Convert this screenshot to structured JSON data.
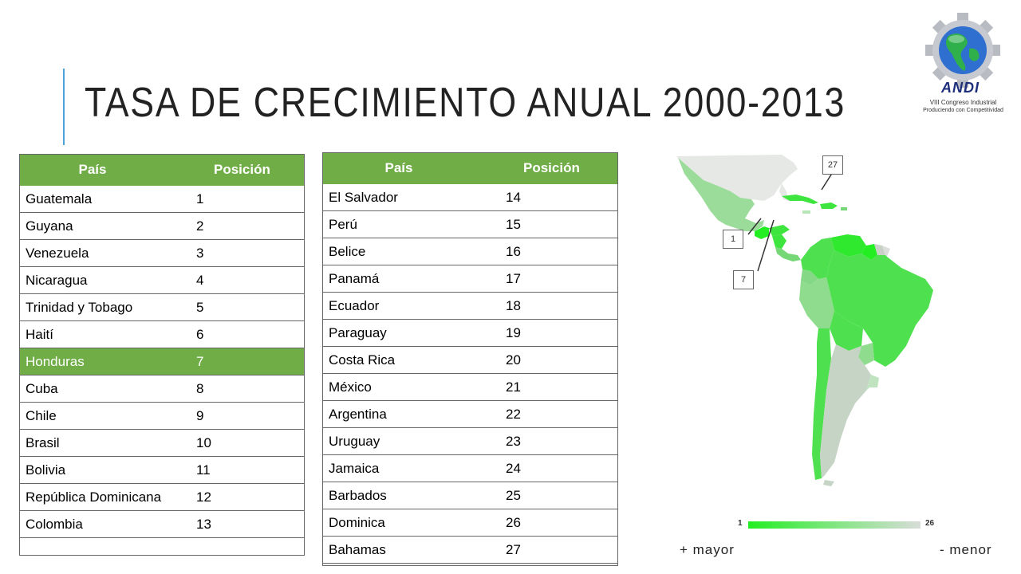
{
  "slide": {
    "title": "TASA DE CRECIMIENTO ANUAL 2000-2013"
  },
  "logo": {
    "name": "ANDI",
    "line1": "VIII Congreso Industrial",
    "line2": "Produciendo con Competitividad"
  },
  "table_left": {
    "headers": [
      "País",
      "Posición"
    ],
    "rows": [
      [
        "Guatemala",
        "1"
      ],
      [
        "Guyana",
        "2"
      ],
      [
        "Venezuela",
        "3"
      ],
      [
        "Nicaragua",
        "4"
      ],
      [
        "Trinidad y Tobago",
        "5"
      ],
      [
        "Haití",
        "6"
      ],
      [
        "Honduras",
        "7"
      ],
      [
        "Cuba",
        "8"
      ],
      [
        "Chile",
        "9"
      ],
      [
        "Brasil",
        "10"
      ],
      [
        "Bolivia",
        "11"
      ],
      [
        "República Dominicana",
        "12"
      ],
      [
        "Colombia",
        "13"
      ]
    ],
    "highlighted_row": 6
  },
  "table_right": {
    "headers": [
      "País",
      "Posición"
    ],
    "rows": [
      [
        "El Salvador",
        "14"
      ],
      [
        "Perú",
        "15"
      ],
      [
        "Belice",
        "16"
      ],
      [
        "Panamá",
        "17"
      ],
      [
        "Ecuador",
        "18"
      ],
      [
        "Paraguay",
        "19"
      ],
      [
        "Costa Rica",
        "20"
      ],
      [
        "México",
        "21"
      ],
      [
        "Argentina",
        "22"
      ],
      [
        "Uruguay",
        "23"
      ],
      [
        "Jamaica",
        "24"
      ],
      [
        "Barbados",
        "25"
      ],
      [
        "Dominica",
        "26"
      ],
      [
        "Bahamas",
        "27"
      ]
    ]
  },
  "map": {
    "callouts": [
      "27",
      "1",
      "7"
    ],
    "scale_min": "1",
    "scale_max": "26",
    "legend_more": "+ mayor",
    "legend_less": "- menor",
    "colors": {
      "high": "#22ee22",
      "mid": "#6fd86f",
      "low": "#d0d4d0",
      "table_header": "#70ad47",
      "accent": "#4aa3d6"
    }
  }
}
